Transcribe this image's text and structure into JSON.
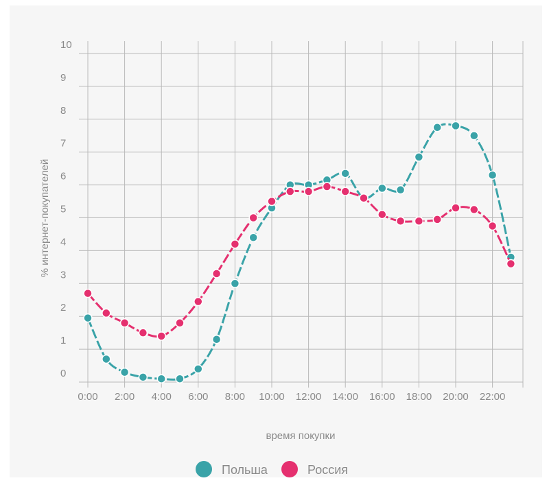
{
  "chart_data": {
    "type": "line",
    "title": "",
    "xlabel": "время покупки",
    "ylabel": "% интернет-покупателей",
    "ylim": [
      0,
      10
    ],
    "yticks": [
      "0",
      "1",
      "2",
      "3",
      "4",
      "5",
      "6",
      "7",
      "8",
      "9",
      "10"
    ],
    "x": [
      0,
      1,
      2,
      3,
      4,
      5,
      6,
      7,
      8,
      9,
      10,
      11,
      12,
      13,
      14,
      15,
      16,
      17,
      18,
      19,
      20,
      21,
      22,
      23
    ],
    "xtick_labels": [
      "0:00",
      "2:00",
      "4:00",
      "6:00",
      "8:00",
      "10:00",
      "12:00",
      "14:00",
      "16:00",
      "18:00",
      "20:00",
      "22:00"
    ],
    "grid": true,
    "legend_position": "bottom",
    "series": [
      {
        "name": "Польша",
        "color": "#3aa3a8",
        "values": [
          1.95,
          0.7,
          0.3,
          0.15,
          0.1,
          0.1,
          0.4,
          1.3,
          3.0,
          4.4,
          5.3,
          6.0,
          6.0,
          6.15,
          6.35,
          5.6,
          5.9,
          5.85,
          6.85,
          7.75,
          7.8,
          7.5,
          6.3,
          3.8
        ]
      },
      {
        "name": "Россия",
        "color": "#e5306f",
        "values": [
          2.7,
          2.1,
          1.8,
          1.5,
          1.4,
          1.8,
          2.45,
          3.3,
          4.2,
          5.0,
          5.5,
          5.8,
          5.8,
          5.95,
          5.8,
          5.6,
          5.1,
          4.9,
          4.9,
          4.95,
          5.3,
          5.25,
          4.75,
          3.6
        ]
      }
    ]
  }
}
